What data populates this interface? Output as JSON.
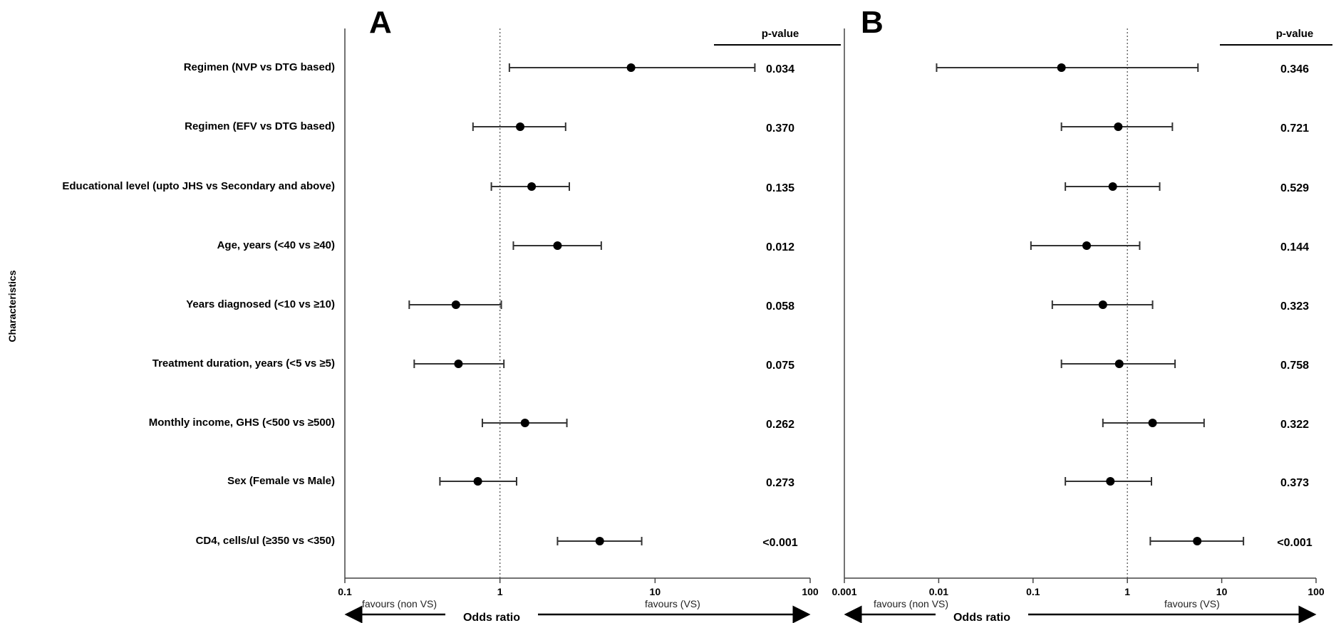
{
  "chart_data": [
    {
      "type": "scatter",
      "subtype": "forest-plot",
      "panel": "A",
      "ylabel": "Characteristics",
      "xlabel": "Odds ratio",
      "x_scale": "log",
      "xlim": [
        0.1,
        100
      ],
      "xticks": [
        "0.1",
        "1",
        "10",
        "100"
      ],
      "reference_line": 1,
      "favour_left": "favours (non VS)",
      "favour_right": "favours (VS)",
      "pvalue_header": "p-value",
      "categories": [
        "Regimen (NVP vs DTG based)",
        "Regimen (EFV vs DTG based)",
        "Educational level (upto JHS vs Secondary and above)",
        "Age, years (<40 vs ≥40)",
        "Years diagnosed (<10 vs ≥10)",
        "Treatment duration, years (<5 vs ≥5)",
        "Monthly income, GHS (<500 vs ≥500)",
        "Sex (Female vs Male)",
        "CD4, cells/ul (≥350 vs <350)"
      ],
      "or": [
        7.0,
        1.35,
        1.6,
        2.35,
        0.52,
        0.54,
        1.45,
        0.72,
        4.4
      ],
      "ci_low": [
        1.15,
        0.67,
        0.88,
        1.22,
        0.26,
        0.28,
        0.77,
        0.41,
        2.35
      ],
      "ci_high": [
        44,
        2.65,
        2.8,
        4.5,
        1.02,
        1.06,
        2.7,
        1.28,
        8.2
      ],
      "pvalues": [
        "0.034",
        "0.370",
        "0.135",
        "0.012",
        "0.058",
        "0.075",
        "0.262",
        "0.273",
        "<0.001"
      ]
    },
    {
      "type": "scatter",
      "subtype": "forest-plot",
      "panel": "B",
      "xlabel": "Odds ratio",
      "x_scale": "log",
      "xlim": [
        0.001,
        100
      ],
      "xticks": [
        "0.001",
        "0.01",
        "0.1",
        "1",
        "10",
        "100"
      ],
      "reference_line": 1,
      "favour_left": "favours (non VS)",
      "favour_right": "favours (VS)",
      "pvalue_header": "p-value",
      "or": [
        0.2,
        0.8,
        0.7,
        0.37,
        0.55,
        0.82,
        1.85,
        0.66,
        5.5
      ],
      "ci_low": [
        0.0095,
        0.2,
        0.22,
        0.095,
        0.16,
        0.2,
        0.55,
        0.22,
        1.75
      ],
      "ci_high": [
        5.6,
        3.0,
        2.2,
        1.35,
        1.85,
        3.2,
        6.5,
        1.8,
        17
      ],
      "pvalues": [
        "0.346",
        "0.721",
        "0.529",
        "0.144",
        "0.323",
        "0.758",
        "0.322",
        "0.373",
        "<0.001"
      ]
    }
  ]
}
